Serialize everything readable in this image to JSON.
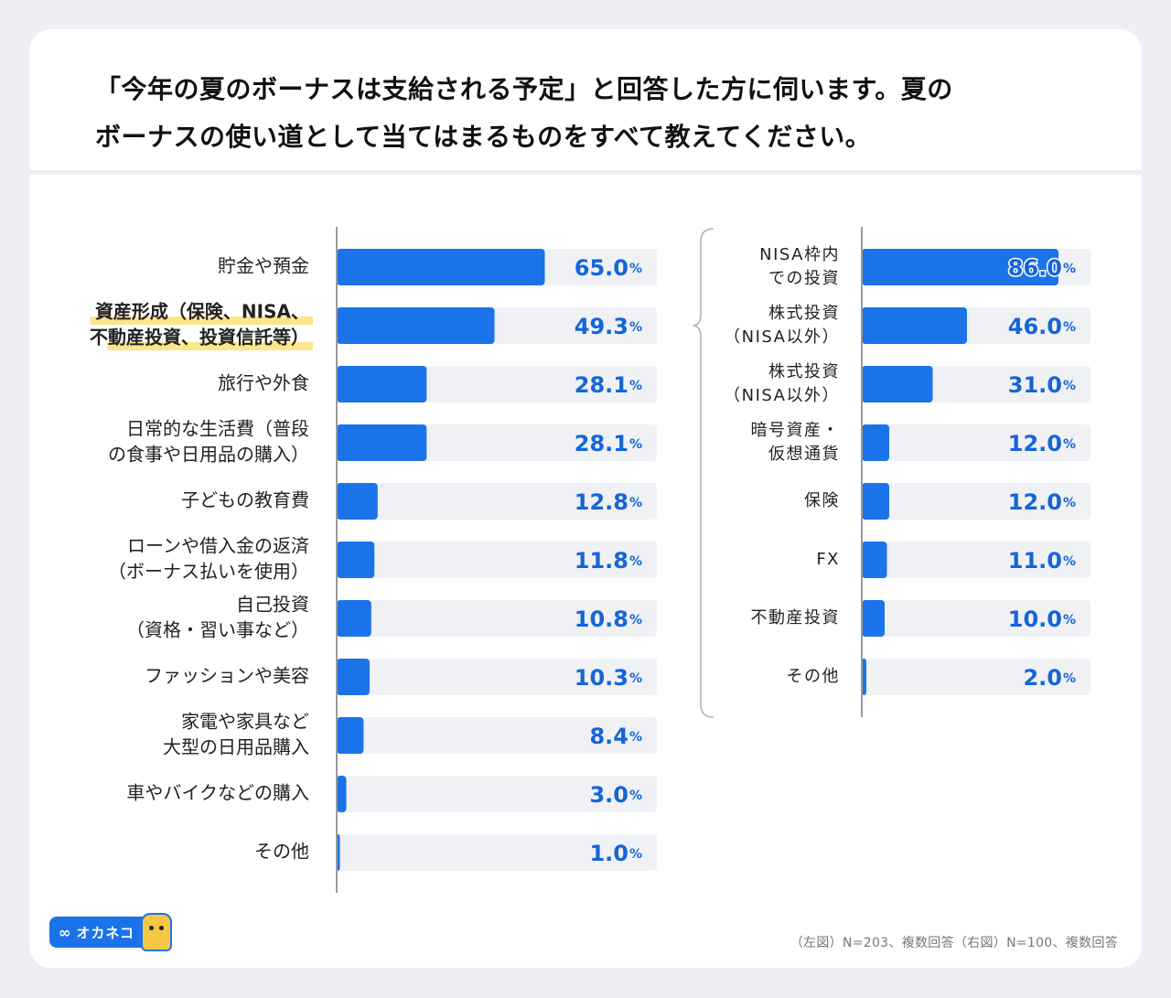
{
  "title": "「今年の夏のボーナスは支給される予定」と回答した方に伺います。夏の\nボーナスの使い道として当てはまるものをすべて教えてください。",
  "footnote": "（左図）N=203、複数回答（右図）N=100、複数回答",
  "logo": {
    "mark": "∞",
    "text": "オカネコ",
    "icon": "cat-mascot-icon"
  },
  "colors": {
    "bar": "#1a73e8",
    "track": "#f0f1f5",
    "highlight": "#fde68a",
    "value_text": "#1565d8"
  },
  "chart_data": [
    {
      "type": "bar",
      "orientation": "horizontal",
      "unit": "%",
      "xlim": [
        0,
        100
      ],
      "highlighted_index": 1,
      "categories": [
        "貯金や預金",
        "資産形成（保険、NISA、\n不動産投資、投資信託等）",
        "旅行や外食",
        "日常的な生活費（普段\nの食事や日用品の購入）",
        "子どもの教育費",
        "ローンや借入金の返済\n（ボーナス払いを使用）",
        "自己投資\n（資格・習い事など）",
        "ファッションや美容",
        "家電や家具など\n大型の日用品購入",
        "車やバイクなどの購入",
        "その他"
      ],
      "values": [
        65.0,
        49.3,
        28.1,
        28.1,
        12.8,
        11.8,
        10.8,
        10.3,
        8.4,
        3.0,
        1.0
      ],
      "value_labels": [
        "65.0",
        "49.3",
        "28.1",
        "28.1",
        "12.8",
        "11.8",
        "10.8",
        "10.3",
        "8.4",
        "3.0",
        "1.0"
      ]
    },
    {
      "type": "bar",
      "orientation": "horizontal",
      "unit": "%",
      "xlim": [
        0,
        100
      ],
      "breakdown_of_index": 1,
      "categories": [
        "NISA枠内\nでの投資",
        "株式投資\n（NISA以外）",
        "株式投資\n（NISA以外）",
        "暗号資産・\n仮想通貨",
        "保険",
        "FX",
        "不動産投資",
        "その他"
      ],
      "values": [
        86.0,
        46.0,
        31.0,
        12.0,
        12.0,
        11.0,
        10.0,
        2.0
      ],
      "value_labels": [
        "86.0",
        "46.0",
        "31.0",
        "12.0",
        "12.0",
        "11.0",
        "10.0",
        "2.0"
      ]
    }
  ]
}
